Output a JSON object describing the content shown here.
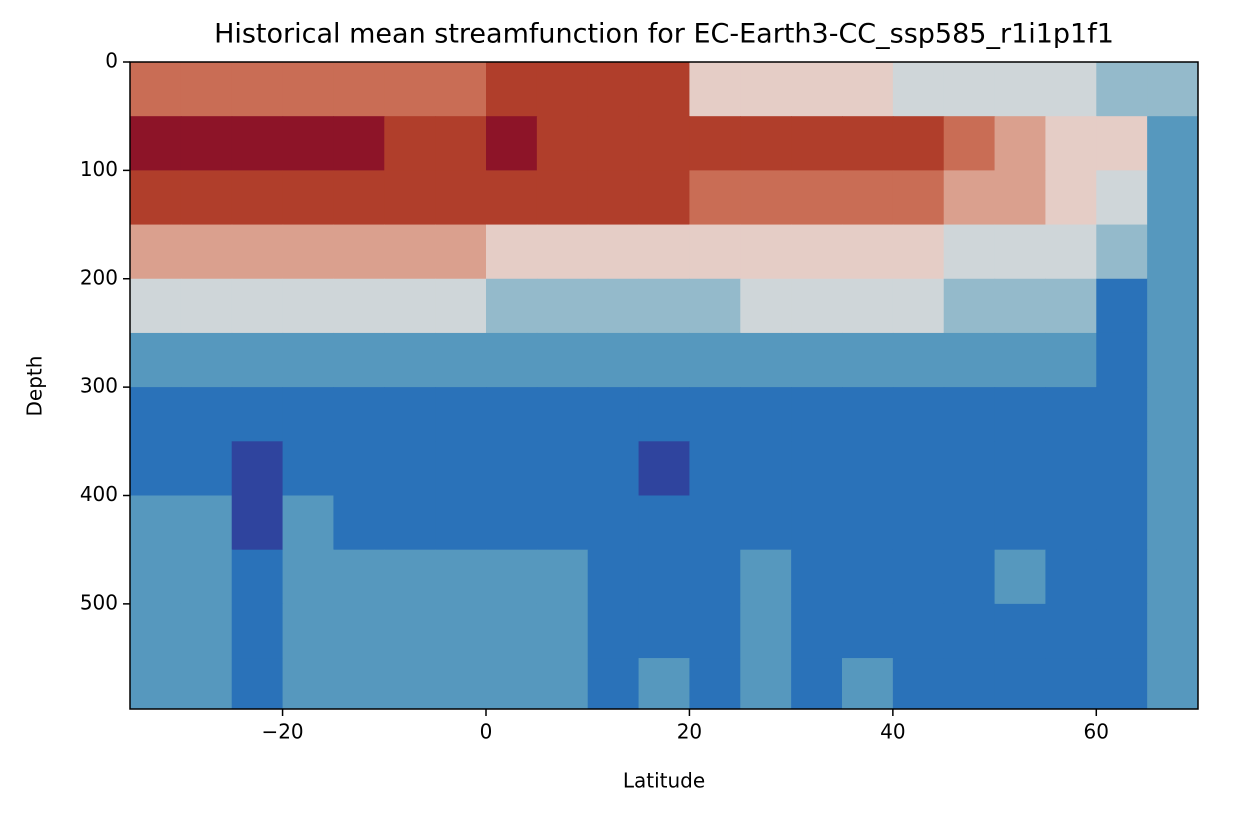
{
  "chart_data": {
    "type": "contourf",
    "title": "Historical mean streamfunction for EC-Earth3-CC_ssp585_r1i1p1f1",
    "x_label": "Latitude",
    "y_label": "Depth",
    "xlim": [
      -35,
      70
    ],
    "ylim": [
      0,
      597
    ],
    "y_inverted": true,
    "xticks": [
      {
        "value": -20,
        "label": "−20"
      },
      0,
      20,
      40,
      60
    ],
    "yticks": [
      0,
      100,
      200,
      300,
      400,
      500
    ],
    "level_colors": [
      "#2f449e",
      "#2a72b9",
      "#5698be",
      "#94bacb",
      "#cfd6d9",
      "#e5cdc6",
      "#daa08e",
      "#c96d55",
      "#b03e2b",
      "#8d1428"
    ],
    "x": [
      -32.5,
      -27.5,
      -22.5,
      -17.5,
      -12.5,
      -7.5,
      -2.5,
      2.5,
      7.5,
      12.5,
      17.5,
      22.5,
      27.5,
      32.5,
      37.5,
      42.5,
      47.5,
      52.5,
      57.5,
      62.5,
      67.5
    ],
    "y": [
      25,
      75,
      125,
      175,
      225,
      275,
      325,
      375,
      425,
      475,
      525,
      575
    ],
    "z": [
      [
        7,
        7,
        7,
        7,
        7,
        7,
        7,
        8,
        8,
        8,
        8,
        5,
        5,
        5,
        5,
        4,
        4,
        4,
        4,
        3,
        3
      ],
      [
        9,
        9,
        9,
        9,
        9,
        8,
        8,
        9,
        8,
        8,
        8,
        8,
        8,
        8,
        8,
        8,
        7,
        6,
        5,
        5,
        2
      ],
      [
        8,
        8,
        8,
        8,
        8,
        8,
        8,
        8,
        8,
        8,
        8,
        7,
        7,
        7,
        7,
        7,
        6,
        6,
        5,
        4,
        2
      ],
      [
        6,
        6,
        6,
        6,
        6,
        6,
        6,
        5,
        5,
        5,
        5,
        5,
        5,
        5,
        5,
        5,
        4,
        4,
        4,
        3,
        2
      ],
      [
        4,
        4,
        4,
        4,
        4,
        4,
        4,
        3,
        3,
        3,
        3,
        3,
        4,
        4,
        4,
        4,
        3,
        3,
        3,
        1,
        2
      ],
      [
        2,
        2,
        2,
        2,
        2,
        2,
        2,
        2,
        2,
        2,
        2,
        2,
        2,
        2,
        2,
        2,
        2,
        2,
        2,
        1,
        2
      ],
      [
        1,
        1,
        1,
        1,
        1,
        1,
        1,
        1,
        1,
        1,
        1,
        1,
        1,
        1,
        1,
        1,
        1,
        1,
        1,
        1,
        2
      ],
      [
        1,
        1,
        0,
        1,
        1,
        1,
        1,
        1,
        1,
        1,
        0,
        1,
        1,
        1,
        1,
        1,
        1,
        1,
        1,
        1,
        2
      ],
      [
        2,
        2,
        0,
        2,
        1,
        1,
        1,
        1,
        1,
        1,
        1,
        1,
        1,
        1,
        1,
        1,
        1,
        1,
        1,
        1,
        2
      ],
      [
        2,
        2,
        1,
        2,
        2,
        2,
        2,
        2,
        2,
        1,
        1,
        1,
        2,
        1,
        1,
        1,
        1,
        2,
        1,
        1,
        2
      ],
      [
        2,
        2,
        1,
        2,
        2,
        2,
        2,
        2,
        2,
        1,
        1,
        1,
        2,
        1,
        1,
        1,
        1,
        1,
        1,
        1,
        2
      ],
      [
        2,
        2,
        1,
        2,
        2,
        2,
        2,
        2,
        2,
        1,
        2,
        1,
        2,
        1,
        2,
        1,
        1,
        1,
        1,
        1,
        2
      ]
    ]
  }
}
